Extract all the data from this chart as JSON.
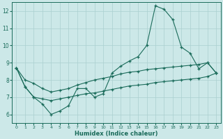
{
  "xlabel": "Humidex (Indice chaleur)",
  "bg_color": "#cce8e8",
  "grid_color": "#aacfcf",
  "line_color": "#1a6b5a",
  "x_values": [
    0,
    1,
    2,
    3,
    4,
    5,
    6,
    7,
    8,
    9,
    10,
    11,
    12,
    13,
    14,
    15,
    16,
    17,
    18,
    19,
    20,
    21,
    22,
    23
  ],
  "line_main": [
    8.7,
    7.6,
    7.0,
    6.6,
    6.0,
    6.2,
    6.5,
    7.5,
    7.5,
    7.0,
    7.2,
    8.4,
    8.8,
    9.1,
    9.35,
    10.0,
    12.3,
    12.1,
    11.5,
    9.9,
    9.55,
    8.65,
    9.0,
    8.4
  ],
  "line_upper": [
    8.7,
    8.0,
    7.8,
    7.5,
    7.3,
    7.4,
    7.5,
    7.7,
    7.85,
    8.0,
    8.1,
    8.2,
    8.35,
    8.45,
    8.5,
    8.6,
    8.65,
    8.7,
    8.75,
    8.8,
    8.85,
    8.9,
    9.0,
    8.4
  ],
  "line_lower": [
    8.7,
    7.6,
    7.0,
    6.9,
    6.8,
    6.9,
    7.0,
    7.1,
    7.2,
    7.25,
    7.35,
    7.45,
    7.55,
    7.65,
    7.7,
    7.75,
    7.85,
    7.9,
    7.95,
    8.0,
    8.05,
    8.1,
    8.2,
    8.4
  ],
  "ylim": [
    5.5,
    12.5
  ],
  "xlim": [
    -0.5,
    23.5
  ],
  "yticks": [
    6,
    7,
    8,
    9,
    10,
    11,
    12
  ],
  "xticks": [
    0,
    1,
    2,
    3,
    4,
    5,
    6,
    7,
    8,
    9,
    10,
    11,
    12,
    13,
    14,
    15,
    16,
    17,
    18,
    19,
    20,
    21,
    22,
    23
  ]
}
